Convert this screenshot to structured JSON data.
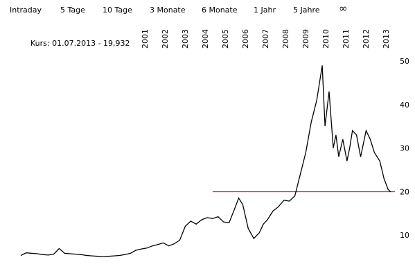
{
  "range_buttons": [
    {
      "label": "Intraday"
    },
    {
      "label": "5 Tage"
    },
    {
      "label": "10 Tage"
    },
    {
      "label": "3 Monate"
    },
    {
      "label": "6 Monate"
    },
    {
      "label": "1 Jahr"
    },
    {
      "label": "5 Jahre"
    },
    {
      "label": "∞"
    }
  ],
  "kurs_label": "Kurs: 01.07.2013 - 19,932",
  "colors": {
    "price_line": "#000000",
    "reference_line": "#cc0000"
  },
  "chart_data": {
    "type": "line",
    "title": "",
    "xlabel": "",
    "ylabel": "",
    "x_tick_labels": [
      "2001",
      "2002",
      "2003",
      "2004",
      "2005",
      "2006",
      "2007",
      "2008",
      "2009",
      "2010",
      "2011",
      "2012",
      "2013"
    ],
    "y_tick_labels": [
      "10",
      "20",
      "30",
      "40",
      "50"
    ],
    "ylim": [
      5,
      50
    ],
    "xlim": [
      2000.0,
      2013.6
    ],
    "y_axis_position": "right",
    "grid": false,
    "reference_line": {
      "value": 19.932,
      "x_start": 2007.0
    },
    "series": [
      {
        "x": [
          2000.0,
          2000.2,
          2000.4,
          2000.6,
          2000.8,
          2001.0,
          2001.2,
          2001.4,
          2001.6,
          2001.8,
          2002.0,
          2002.2,
          2002.4,
          2002.6,
          2002.8,
          2003.0,
          2003.2,
          2003.4,
          2003.6,
          2003.8,
          2004.0,
          2004.2,
          2004.4,
          2004.6,
          2004.8,
          2005.0,
          2005.2,
          2005.4,
          2005.6,
          2005.8,
          2006.0,
          2006.2,
          2006.4,
          2006.6,
          2006.8,
          2007.0,
          2007.2,
          2007.4,
          2007.6,
          2007.8,
          2007.95,
          2008.1,
          2008.3,
          2008.5,
          2008.7,
          2008.85,
          2009.0,
          2009.2,
          2009.4,
          2009.6,
          2009.8,
          2010.0,
          2010.2,
          2010.4,
          2010.6,
          2010.8,
          2011.0,
          2011.1,
          2011.25,
          2011.4,
          2011.5,
          2011.6,
          2011.75,
          2011.9,
          2012.0,
          2012.1,
          2012.25,
          2012.4,
          2012.5,
          2012.6,
          2012.75,
          2012.9,
          2013.0,
          2013.1,
          2013.25,
          2013.4,
          2013.5
        ],
        "values": [
          5.3,
          5.9,
          5.8,
          5.7,
          5.5,
          5.4,
          5.6,
          6.9,
          5.8,
          5.7,
          5.6,
          5.5,
          5.3,
          5.2,
          5.1,
          5.0,
          5.1,
          5.2,
          5.3,
          5.5,
          5.8,
          6.5,
          6.8,
          7.0,
          7.5,
          7.8,
          8.2,
          7.5,
          8.0,
          8.8,
          12.0,
          13.2,
          12.5,
          13.5,
          14.0,
          13.8,
          14.2,
          13.0,
          12.8,
          16.0,
          18.5,
          17.0,
          11.5,
          9.2,
          10.5,
          12.5,
          13.5,
          15.5,
          16.5,
          18.0,
          17.8,
          19.0,
          24.0,
          29.0,
          36.0,
          41.0,
          49.0,
          35.0,
          43.0,
          30.0,
          33.0,
          28.0,
          32.0,
          27.0,
          30.0,
          34.0,
          33.0,
          28.0,
          31.0,
          34.0,
          32.0,
          29.0,
          28.0,
          27.0,
          23.0,
          20.5,
          19.9
        ]
      }
    ]
  }
}
